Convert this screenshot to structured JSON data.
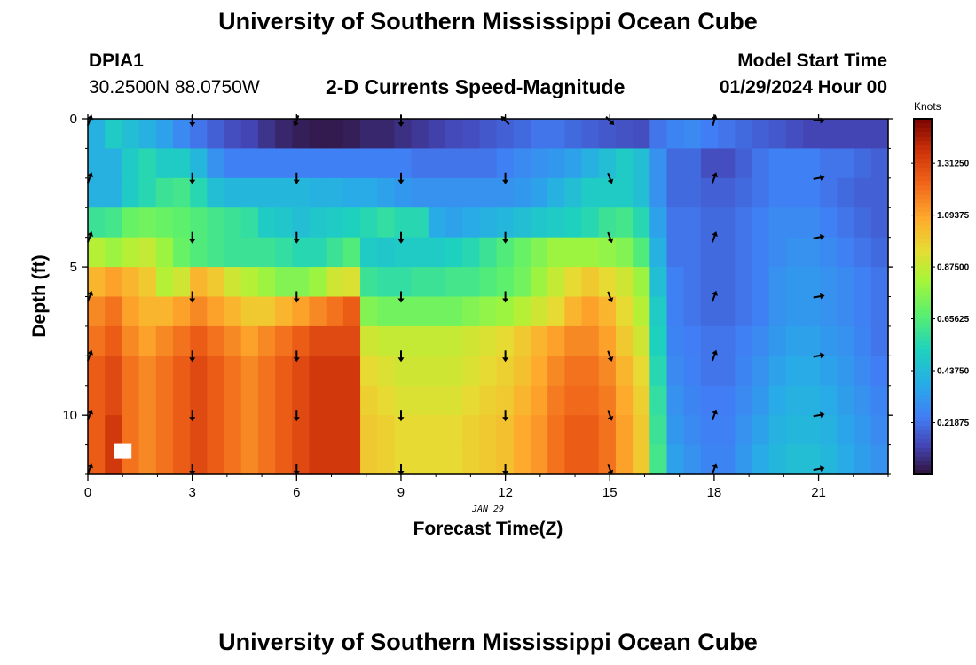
{
  "page": {
    "title": "University of Southern Mississippi Ocean Cube",
    "footer_title": "University of Southern Mississippi Ocean Cube",
    "station_id": "DPIA1",
    "station_coords": "30.2500N  88.0750W",
    "plot_title": "2-D Currents Speed-Magnitude",
    "model_start_label": "Model Start Time",
    "model_start_value": "01/29/2024 Hour 00",
    "date_label": "JAN 29"
  },
  "chart_data": {
    "type": "heatmap",
    "title": "2-D Currents Speed-Magnitude",
    "xlabel": "Forecast Time(Z)",
    "ylabel": "Depth (ft)",
    "x_ticks": [
      "0",
      "3",
      "6",
      "9",
      "12",
      "15",
      "18",
      "21"
    ],
    "y_ticks": [
      "0",
      "5",
      "10"
    ],
    "xlim": [
      0,
      23
    ],
    "ylim": [
      0,
      12
    ],
    "colorbar": {
      "title": "Knots",
      "min": 0,
      "max": 1.5,
      "ticks": [
        "0.21875",
        "0.43750",
        "0.65625",
        "0.87500",
        "1.09375",
        "1.31250"
      ]
    },
    "row_depths": [
      0,
      1,
      2,
      3,
      4,
      5,
      6,
      7,
      8,
      9,
      10,
      11
    ],
    "speed_grid": [
      [
        0.4,
        0.5,
        0.45,
        0.4,
        0.35,
        0.28,
        0.22,
        0.18,
        0.14,
        0.12,
        0.08,
        0.05,
        0.03,
        0.02,
        0.02,
        0.03,
        0.05,
        0.05,
        0.07,
        0.09,
        0.11,
        0.13,
        0.14,
        0.16,
        0.18,
        0.2,
        0.22,
        0.22,
        0.2,
        0.18,
        0.16,
        0.15,
        0.14,
        0.22,
        0.26,
        0.28,
        0.24,
        0.22,
        0.2,
        0.18,
        0.16,
        0.14,
        0.12,
        0.12,
        0.12,
        0.12,
        0.12
      ],
      [
        0.4,
        0.4,
        0.5,
        0.55,
        0.5,
        0.5,
        0.42,
        0.3,
        0.25,
        0.25,
        0.25,
        0.25,
        0.25,
        0.25,
        0.25,
        0.25,
        0.25,
        0.25,
        0.25,
        0.22,
        0.22,
        0.22,
        0.22,
        0.22,
        0.25,
        0.28,
        0.3,
        0.32,
        0.35,
        0.4,
        0.45,
        0.5,
        0.45,
        0.3,
        0.2,
        0.2,
        0.14,
        0.14,
        0.18,
        0.22,
        0.25,
        0.25,
        0.25,
        0.22,
        0.22,
        0.2,
        0.18
      ],
      [
        0.4,
        0.4,
        0.5,
        0.55,
        0.6,
        0.62,
        0.55,
        0.45,
        0.42,
        0.42,
        0.42,
        0.42,
        0.42,
        0.4,
        0.4,
        0.38,
        0.38,
        0.35,
        0.32,
        0.3,
        0.3,
        0.3,
        0.3,
        0.3,
        0.3,
        0.32,
        0.35,
        0.4,
        0.45,
        0.5,
        0.5,
        0.5,
        0.45,
        0.3,
        0.2,
        0.2,
        0.18,
        0.18,
        0.2,
        0.22,
        0.25,
        0.25,
        0.25,
        0.22,
        0.2,
        0.18,
        0.18
      ],
      [
        0.6,
        0.62,
        0.7,
        0.72,
        0.7,
        0.68,
        0.65,
        0.62,
        0.6,
        0.58,
        0.5,
        0.48,
        0.45,
        0.48,
        0.5,
        0.52,
        0.55,
        0.58,
        0.55,
        0.55,
        0.38,
        0.35,
        0.38,
        0.4,
        0.42,
        0.45,
        0.48,
        0.5,
        0.52,
        0.55,
        0.6,
        0.62,
        0.55,
        0.35,
        0.22,
        0.22,
        0.2,
        0.2,
        0.22,
        0.25,
        0.28,
        0.28,
        0.28,
        0.25,
        0.22,
        0.2,
        0.18
      ],
      [
        0.85,
        0.8,
        0.85,
        0.88,
        0.8,
        0.7,
        0.65,
        0.62,
        0.6,
        0.6,
        0.6,
        0.58,
        0.55,
        0.55,
        0.6,
        0.65,
        0.5,
        0.48,
        0.5,
        0.5,
        0.5,
        0.52,
        0.55,
        0.6,
        0.65,
        0.7,
        0.75,
        0.8,
        0.8,
        0.8,
        0.78,
        0.75,
        0.65,
        0.4,
        0.22,
        0.22,
        0.2,
        0.2,
        0.22,
        0.25,
        0.28,
        0.3,
        0.3,
        0.28,
        0.25,
        0.22,
        0.2
      ],
      [
        1.05,
        1.1,
        1.05,
        1.0,
        0.85,
        0.9,
        1.05,
        1.0,
        0.9,
        0.85,
        0.8,
        0.75,
        0.75,
        0.8,
        0.9,
        0.92,
        0.6,
        0.58,
        0.58,
        0.6,
        0.6,
        0.62,
        0.62,
        0.65,
        0.68,
        0.72,
        0.8,
        0.88,
        0.95,
        1.0,
        0.95,
        0.9,
        0.8,
        0.45,
        0.25,
        0.22,
        0.2,
        0.2,
        0.22,
        0.25,
        0.3,
        0.32,
        0.32,
        0.3,
        0.28,
        0.25,
        0.22
      ],
      [
        1.15,
        1.2,
        1.1,
        1.05,
        1.05,
        1.1,
        1.15,
        1.1,
        1.05,
        1.0,
        1.0,
        1.05,
        1.1,
        1.15,
        1.2,
        1.25,
        0.75,
        0.72,
        0.72,
        0.72,
        0.72,
        0.72,
        0.75,
        0.78,
        0.8,
        0.85,
        0.9,
        0.95,
        1.05,
        1.1,
        1.05,
        0.95,
        0.85,
        0.5,
        0.25,
        0.22,
        0.2,
        0.2,
        0.22,
        0.25,
        0.3,
        0.32,
        0.32,
        0.3,
        0.28,
        0.25,
        0.22
      ],
      [
        1.2,
        1.25,
        1.15,
        1.1,
        1.15,
        1.2,
        1.25,
        1.2,
        1.15,
        1.1,
        1.15,
        1.2,
        1.25,
        1.3,
        1.3,
        1.3,
        0.9,
        0.88,
        0.88,
        0.88,
        0.88,
        0.88,
        0.9,
        0.92,
        0.95,
        1.0,
        1.05,
        1.1,
        1.15,
        1.15,
        1.1,
        1.0,
        0.9,
        0.52,
        0.26,
        0.24,
        0.22,
        0.22,
        0.25,
        0.28,
        0.32,
        0.35,
        0.35,
        0.32,
        0.3,
        0.26,
        0.22
      ],
      [
        1.25,
        1.3,
        1.2,
        1.15,
        1.2,
        1.25,
        1.3,
        1.25,
        1.2,
        1.15,
        1.2,
        1.25,
        1.3,
        1.35,
        1.35,
        1.35,
        0.95,
        0.92,
        0.9,
        0.9,
        0.9,
        0.9,
        0.92,
        0.95,
        0.98,
        1.02,
        1.08,
        1.15,
        1.2,
        1.2,
        1.15,
        1.05,
        0.95,
        0.55,
        0.28,
        0.25,
        0.22,
        0.22,
        0.26,
        0.3,
        0.35,
        0.38,
        0.38,
        0.35,
        0.32,
        0.28,
        0.24
      ],
      [
        1.25,
        1.3,
        1.2,
        1.15,
        1.2,
        1.25,
        1.3,
        1.25,
        1.2,
        1.15,
        1.2,
        1.25,
        1.3,
        1.35,
        1.35,
        1.35,
        0.98,
        0.95,
        0.92,
        0.92,
        0.92,
        0.92,
        0.95,
        0.98,
        1.0,
        1.05,
        1.1,
        1.18,
        1.22,
        1.22,
        1.18,
        1.08,
        0.98,
        0.58,
        0.3,
        0.26,
        0.24,
        0.24,
        0.28,
        0.32,
        0.38,
        0.4,
        0.4,
        0.38,
        0.34,
        0.3,
        0.26
      ],
      [
        1.25,
        1.35,
        1.2,
        1.15,
        1.2,
        1.25,
        1.3,
        1.25,
        1.2,
        1.15,
        1.2,
        1.25,
        1.3,
        1.35,
        1.35,
        1.35,
        1.0,
        0.98,
        0.95,
        0.95,
        0.95,
        0.95,
        0.98,
        1.0,
        1.02,
        1.08,
        1.12,
        1.2,
        1.25,
        1.25,
        1.2,
        1.1,
        1.0,
        0.6,
        0.32,
        0.28,
        0.25,
        0.25,
        0.3,
        0.35,
        0.4,
        0.42,
        0.42,
        0.4,
        0.36,
        0.32,
        0.28
      ],
      [
        1.25,
        1.35,
        1.2,
        1.15,
        1.2,
        1.25,
        1.3,
        1.25,
        1.2,
        1.15,
        1.2,
        1.25,
        1.3,
        1.35,
        1.35,
        1.35,
        1.0,
        0.98,
        0.95,
        0.95,
        0.95,
        0.95,
        0.98,
        1.0,
        1.02,
        1.08,
        1.12,
        1.2,
        1.25,
        1.25,
        1.2,
        1.1,
        1.0,
        0.62,
        0.35,
        0.3,
        0.26,
        0.26,
        0.32,
        0.38,
        0.42,
        0.45,
        0.45,
        0.42,
        0.38,
        0.34,
        0.3
      ]
    ],
    "missing_cells": [
      {
        "time": 1.0,
        "depth": 11
      }
    ],
    "arrow_times": [
      0,
      3,
      6,
      9,
      12,
      15,
      18,
      21
    ],
    "arrow_depths": [
      0,
      2,
      4,
      6,
      8,
      10,
      12
    ],
    "arrow_directions_deg": [
      [
        20,
        180,
        200,
        180,
        315,
        135,
        15,
        90
      ],
      [
        20,
        180,
        180,
        180,
        180,
        160,
        20,
        80
      ],
      [
        20,
        180,
        180,
        180,
        180,
        160,
        20,
        80
      ],
      [
        20,
        180,
        180,
        180,
        180,
        160,
        20,
        80
      ],
      [
        20,
        180,
        180,
        180,
        180,
        160,
        20,
        80
      ],
      [
        20,
        180,
        180,
        180,
        180,
        160,
        20,
        80
      ],
      [
        20,
        180,
        180,
        180,
        180,
        160,
        20,
        80
      ]
    ]
  }
}
